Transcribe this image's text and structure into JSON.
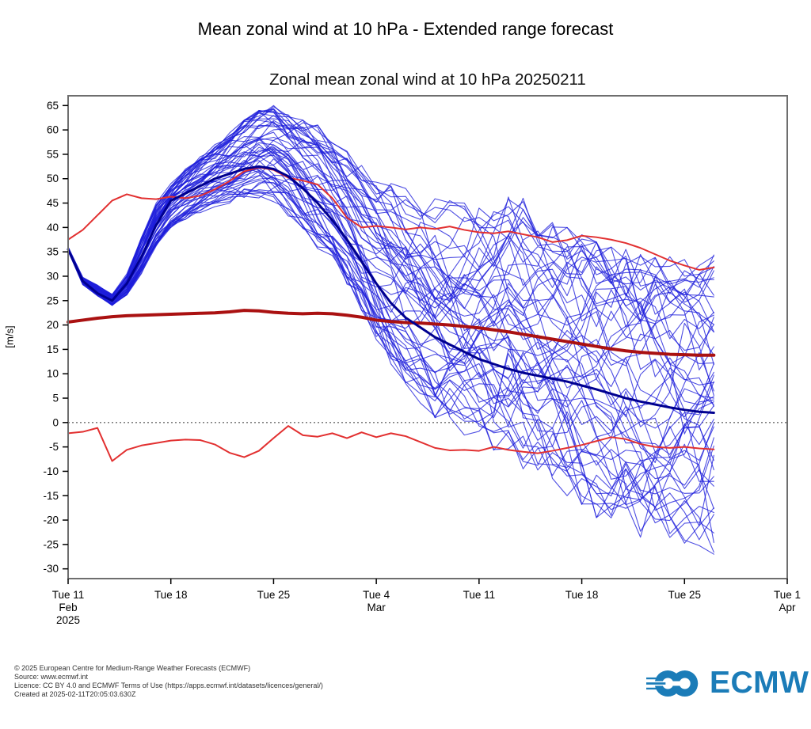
{
  "page": {
    "title": "Mean zonal wind at 10 hPa - Extended range forecast"
  },
  "footer": {
    "lines": [
      "© 2025 European Centre for Medium-Range Weather Forecasts (ECMWF)",
      "Source: www.ecmwf.int",
      "Licence: CC BY 4.0 and ECMWF Terms of Use (https://apps.ecmwf.int/datasets/licences/general/)",
      "Created at 2025-02-11T20:05:03.630Z"
    ]
  },
  "logo": {
    "text": "ECMWF",
    "color": "#1b7cb8"
  },
  "chart_data": {
    "type": "line",
    "title": "Zonal mean zonal wind at 10 hPa 20250211",
    "ylabel": "[m/s]",
    "ylim": [
      -32,
      67
    ],
    "xlim_days": [
      0,
      49
    ],
    "start_date": "Tue 11 Feb 2025",
    "grid": false,
    "zero_line": 0,
    "yticks": [
      65,
      60,
      55,
      50,
      45,
      40,
      35,
      30,
      25,
      20,
      15,
      10,
      5,
      0,
      -5,
      -10,
      -15,
      -20,
      -25,
      -30
    ],
    "xticks": [
      {
        "day": 0,
        "lines": [
          "Tue 11",
          "Feb",
          "2025"
        ]
      },
      {
        "day": 7,
        "lines": [
          "Tue 18"
        ]
      },
      {
        "day": 14,
        "lines": [
          "Tue 25"
        ]
      },
      {
        "day": 21,
        "lines": [
          "Tue 4",
          "Mar"
        ]
      },
      {
        "day": 28,
        "lines": [
          "Tue 11"
        ]
      },
      {
        "day": 35,
        "lines": [
          "Tue 18"
        ]
      },
      {
        "day": 42,
        "lines": [
          "Tue 25"
        ]
      },
      {
        "day": 49,
        "lines": [
          "Tue 1",
          "Apr"
        ]
      }
    ],
    "forecast_days": 45,
    "colors": {
      "frame": "#6e6e6e",
      "tick": "#000000",
      "zero": "#333333",
      "member_blue": "#1d1ddb",
      "control_navy": "#000090",
      "climate_mean_red": "#aa1111",
      "percentile_red": "#e23030"
    },
    "series": [
      {
        "name": "climate_upper_percentile",
        "color_key": "percentile_red",
        "width": 2,
        "values": [
          37.5,
          39.5,
          42.5,
          45.5,
          46.8,
          46.0,
          45.8,
          46.3,
          46.0,
          46.5,
          47.8,
          49.5,
          51.5,
          52.3,
          51.8,
          50.2,
          49.6,
          48.8,
          46.0,
          42.0,
          40.0,
          40.3,
          40.0,
          39.6,
          40.0,
          39.7,
          40.2,
          39.5,
          39.0,
          38.8,
          39.2,
          38.6,
          38.0,
          37.0,
          37.4,
          38.3,
          38.0,
          37.5,
          36.8,
          35.8,
          34.5,
          33.2,
          32.2,
          31.3,
          31.8
        ]
      },
      {
        "name": "climate_lower_percentile",
        "color_key": "percentile_red",
        "width": 2,
        "values": [
          -2.2,
          -1.9,
          -1.1,
          -7.9,
          -5.6,
          -4.7,
          -4.2,
          -3.7,
          -3.5,
          -3.6,
          -4.5,
          -6.2,
          -7.1,
          -5.8,
          -3.2,
          -0.7,
          -2.6,
          -2.9,
          -2.2,
          -3.2,
          -2.0,
          -3.0,
          -2.2,
          -2.8,
          -4.0,
          -5.2,
          -5.7,
          -5.6,
          -5.8,
          -5.0,
          -5.6,
          -6.0,
          -6.3,
          -5.8,
          -5.2,
          -4.6,
          -3.8,
          -3.0,
          -3.4,
          -4.4,
          -5.0,
          -5.2,
          -5.0,
          -5.3,
          -5.5
        ]
      },
      {
        "name": "climate_mean",
        "color_key": "climate_mean_red",
        "width": 4,
        "values": [
          20.6,
          21.0,
          21.4,
          21.7,
          21.9,
          22.0,
          22.1,
          22.2,
          22.3,
          22.4,
          22.5,
          22.7,
          23.0,
          22.9,
          22.6,
          22.4,
          22.3,
          22.4,
          22.3,
          22.0,
          21.6,
          21.0,
          20.7,
          20.5,
          20.4,
          20.2,
          20.0,
          19.7,
          19.4,
          19.0,
          18.6,
          18.1,
          17.6,
          17.1,
          16.6,
          16.1,
          15.6,
          15.1,
          14.7,
          14.4,
          14.2,
          14.0,
          13.9,
          13.8,
          13.8
        ]
      },
      {
        "name": "ensemble_control",
        "color_key": "control_navy",
        "width": 3,
        "values": [
          35.5,
          29.0,
          26.5,
          25.0,
          28.5,
          34.0,
          40.5,
          45.5,
          47.0,
          48.5,
          50.0,
          51.0,
          52.0,
          52.5,
          52.0,
          50.5,
          48.0,
          45.0,
          41.5,
          37.5,
          33.0,
          28.5,
          24.5,
          21.5,
          19.5,
          17.5,
          16.0,
          14.5,
          13.0,
          12.0,
          11.0,
          10.2,
          9.6,
          9.0,
          8.4,
          7.6,
          6.8,
          5.9,
          5.0,
          4.3,
          3.7,
          3.1,
          2.6,
          2.2,
          2.0
        ]
      }
    ],
    "ensemble": {
      "name": "ens_members",
      "color_key": "member_blue",
      "width": 1.1,
      "opacity": 0.78,
      "count": 55,
      "seed": 20250211,
      "envelope_min": [
        35.2,
        28.2,
        26.0,
        24.0,
        26.0,
        30.5,
        36.0,
        40.0,
        41.5,
        43.0,
        43.5,
        44.0,
        45.0,
        45.5,
        44.5,
        42.0,
        39.0,
        35.5,
        32.0,
        28.0,
        23.0,
        17.0,
        12.0,
        8.0,
        4.0,
        1.0,
        -1.0,
        -3.0,
        -5.0,
        -6.5,
        -8.0,
        -9.5,
        -11.0,
        -13.0,
        -15.0,
        -17.5,
        -19.5,
        -21.0,
        -22.0,
        -23.5,
        -25.0,
        -26.0,
        -26.5,
        -27.0,
        -27.0
      ],
      "envelope_max": [
        36.0,
        29.8,
        28.2,
        26.3,
        30.5,
        38.0,
        45.0,
        49.0,
        52.0,
        54.5,
        57.0,
        59.5,
        62.0,
        64.0,
        65.0,
        63.5,
        62.0,
        61.0,
        58.5,
        56.0,
        53.0,
        50.5,
        49.0,
        48.0,
        47.0,
        46.0,
        45.5,
        45.0,
        46.0,
        47.0,
        48.5,
        46.0,
        43.0,
        41.0,
        40.0,
        38.5,
        37.0,
        36.0,
        35.5,
        35.0,
        34.5,
        34.0,
        34.5,
        34.0,
        34.5
      ]
    }
  }
}
